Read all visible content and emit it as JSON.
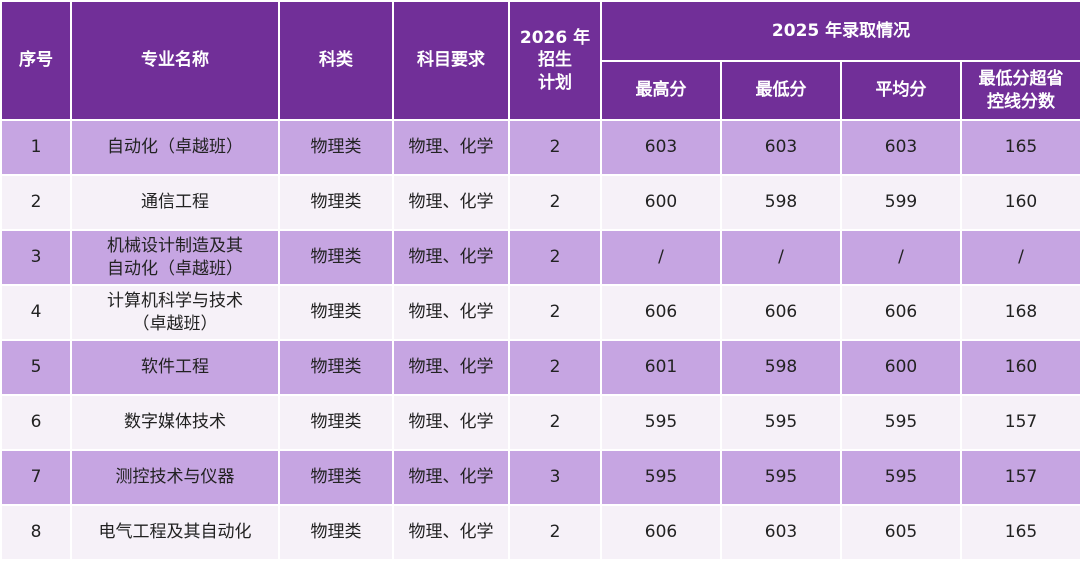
{
  "header": {
    "columns": [
      "序号",
      "专业名称",
      "科类",
      "科目要求",
      "2026 年\n招生\n计划"
    ],
    "group": {
      "title": "2025 年录取情况",
      "columns": [
        "最高分",
        "最低分",
        "平均分",
        "最低分超省\n控线分数"
      ]
    }
  },
  "table": {
    "rows": [
      [
        1,
        "自动化（卓越班）",
        "物理类",
        "物理、化学",
        2,
        603,
        603,
        603,
        165
      ],
      [
        2,
        "通信工程",
        "物理类",
        "物理、化学",
        2,
        600,
        598,
        599,
        160
      ],
      [
        3,
        "机械设计制造及其\n自动化（卓越班）",
        "物理类",
        "物理、化学",
        2,
        "/",
        "/",
        "/",
        "/"
      ],
      [
        4,
        "计算机科学与技术\n（卓越班）",
        "物理类",
        "物理、化学",
        2,
        606,
        606,
        606,
        168
      ],
      [
        5,
        "软件工程",
        "物理类",
        "物理、化学",
        2,
        601,
        598,
        600,
        160
      ],
      [
        6,
        "数字媒体技术",
        "物理类",
        "物理、化学",
        2,
        595,
        595,
        595,
        157
      ],
      [
        7,
        "测控技术与仪器",
        "物理类",
        "物理、化学",
        3,
        595,
        595,
        595,
        157
      ],
      [
        8,
        "电气工程及其自动化",
        "物理类",
        "物理、化学",
        2,
        606,
        603,
        605,
        165
      ]
    ]
  }
}
